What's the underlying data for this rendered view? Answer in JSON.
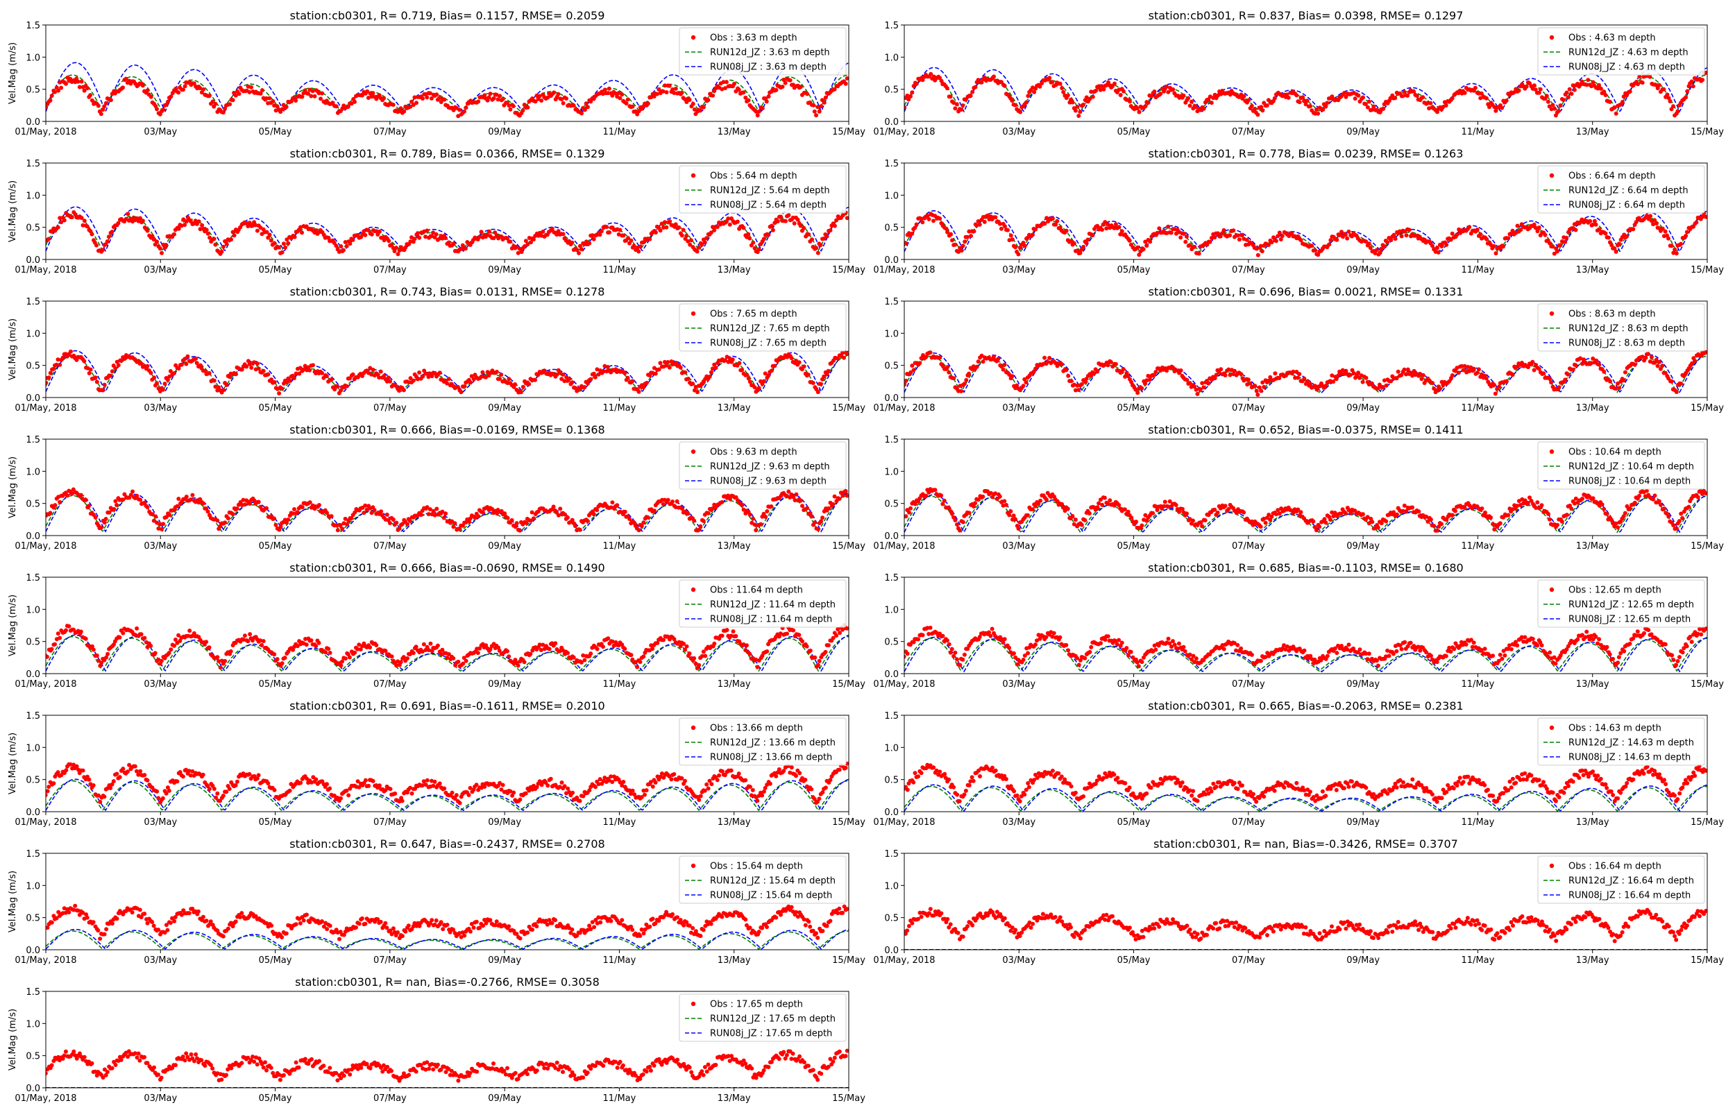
{
  "figure": {
    "background": "#ffffff"
  },
  "colors": {
    "obs": "#ff0000",
    "run12d": "#008000",
    "run08j": "#0000ff"
  },
  "chart_data": [
    {
      "type": "scatter",
      "title": "station:cb0301, R= 0.719, Bias= 0.1157, RMSE= 0.2059",
      "depth": "3.63",
      "xlabel": "",
      "ylabel": "Vel.Mag (m/s)",
      "x_ticks": [
        "01/May, 2018",
        "03/May",
        "05/May",
        "07/May",
        "09/May",
        "11/May",
        "13/May",
        "15/May"
      ],
      "xlim": [
        0,
        14
      ],
      "ylim": [
        0,
        1.5
      ],
      "y_ticks": [
        "0.0",
        "0.5",
        "1.0",
        "1.5"
      ],
      "legend_position": "top-right",
      "series": [
        {
          "name": "Obs : 3.63 m depth",
          "obs_mean": 0.33,
          "amp": 0.2
        },
        {
          "name": "RUN12d_JZ : 3.63 m depth",
          "mean": 0.38,
          "amp": 0.22
        },
        {
          "name": "RUN08j_JZ : 3.63 m depth",
          "mean": 0.45,
          "amp": 0.3
        }
      ]
    },
    {
      "type": "scatter",
      "title": "station:cb0301, R= 0.837, Bias= 0.0398, RMSE= 0.1297",
      "depth": "4.63",
      "xlabel": "",
      "ylabel": "",
      "x_ticks": [
        "01/May, 2018",
        "03/May",
        "05/May",
        "07/May",
        "09/May",
        "11/May",
        "13/May",
        "15/May"
      ],
      "xlim": [
        0,
        14
      ],
      "ylim": [
        0,
        1.5
      ],
      "y_ticks": [
        "0.0",
        "0.5",
        "1.0",
        "1.5"
      ],
      "legend_position": "top-right",
      "series": [
        {
          "name": "Obs : 4.63 m depth",
          "obs_mean": 0.36,
          "amp": 0.22
        },
        {
          "name": "RUN12d_JZ : 4.63 m depth",
          "mean": 0.38,
          "amp": 0.22
        },
        {
          "name": "RUN08j_JZ : 4.63 m depth",
          "mean": 0.42,
          "amp": 0.27
        }
      ]
    },
    {
      "type": "scatter",
      "title": "station:cb0301, R= 0.789, Bias= 0.0366, RMSE= 0.1329",
      "depth": "5.64",
      "xlabel": "",
      "ylabel": "Vel.Mag (m/s)",
      "x_ticks": [
        "01/May, 2018",
        "03/May",
        "05/May",
        "07/May",
        "09/May",
        "11/May",
        "13/May",
        "15/May"
      ],
      "xlim": [
        0,
        14
      ],
      "ylim": [
        0,
        1.5
      ],
      "y_ticks": [
        "0.0",
        "0.5",
        "1.0",
        "1.5"
      ],
      "legend_position": "top-right",
      "series": [
        {
          "name": "Obs : 5.64 m depth",
          "obs_mean": 0.34,
          "amp": 0.22
        },
        {
          "name": "RUN12d_JZ : 5.64 m depth",
          "mean": 0.36,
          "amp": 0.22
        },
        {
          "name": "RUN08j_JZ : 5.64 m depth",
          "mean": 0.4,
          "amp": 0.27
        }
      ]
    },
    {
      "type": "scatter",
      "title": "station:cb0301, R= 0.778, Bias= 0.0239, RMSE= 0.1263",
      "depth": "6.64",
      "xlabel": "",
      "ylabel": "",
      "x_ticks": [
        "01/May, 2018",
        "03/May",
        "05/May",
        "07/May",
        "09/May",
        "11/May",
        "13/May",
        "15/May"
      ],
      "xlim": [
        0,
        14
      ],
      "ylim": [
        0,
        1.5
      ],
      "y_ticks": [
        "0.0",
        "0.5",
        "1.0",
        "1.5"
      ],
      "legend_position": "top-right",
      "series": [
        {
          "name": "Obs : 6.64 m depth",
          "obs_mean": 0.33,
          "amp": 0.22
        },
        {
          "name": "RUN12d_JZ : 6.64 m depth",
          "mean": 0.34,
          "amp": 0.22
        },
        {
          "name": "RUN08j_JZ : 6.64 m depth",
          "mean": 0.37,
          "amp": 0.25
        }
      ]
    },
    {
      "type": "scatter",
      "title": "station:cb0301, R= 0.743, Bias= 0.0131, RMSE= 0.1278",
      "depth": "7.65",
      "xlabel": "",
      "ylabel": "Vel.Mag (m/s)",
      "x_ticks": [
        "01/May, 2018",
        "03/May",
        "05/May",
        "07/May",
        "09/May",
        "11/May",
        "13/May",
        "15/May"
      ],
      "xlim": [
        0,
        14
      ],
      "ylim": [
        0,
        1.5
      ],
      "y_ticks": [
        "0.0",
        "0.5",
        "1.0",
        "1.5"
      ],
      "legend_position": "top-right",
      "series": [
        {
          "name": "Obs : 7.65 m depth",
          "obs_mean": 0.32,
          "amp": 0.22
        },
        {
          "name": "RUN12d_JZ : 7.65 m depth",
          "mean": 0.31,
          "amp": 0.22
        },
        {
          "name": "RUN08j_JZ : 7.65 m depth",
          "mean": 0.34,
          "amp": 0.25
        }
      ]
    },
    {
      "type": "scatter",
      "title": "station:cb0301, R= 0.696, Bias= 0.0021, RMSE= 0.1331",
      "depth": "8.63",
      "xlabel": "",
      "ylabel": "",
      "x_ticks": [
        "01/May, 2018",
        "03/May",
        "05/May",
        "07/May",
        "09/May",
        "11/May",
        "13/May",
        "15/May"
      ],
      "xlim": [
        0,
        14
      ],
      "ylim": [
        0,
        1.5
      ],
      "y_ticks": [
        "0.0",
        "0.5",
        "1.0",
        "1.5"
      ],
      "legend_position": "top-right",
      "series": [
        {
          "name": "Obs : 8.63 m depth",
          "obs_mean": 0.32,
          "amp": 0.22
        },
        {
          "name": "RUN12d_JZ : 8.63 m depth",
          "mean": 0.3,
          "amp": 0.22
        },
        {
          "name": "RUN08j_JZ : 8.63 m depth",
          "mean": 0.32,
          "amp": 0.24
        }
      ]
    },
    {
      "type": "scatter",
      "title": "station:cb0301, R= 0.666, Bias=-0.0169, RMSE= 0.1368",
      "depth": "9.63",
      "xlabel": "",
      "ylabel": "Vel.Mag (m/s)",
      "x_ticks": [
        "01/May, 2018",
        "03/May",
        "05/May",
        "07/May",
        "09/May",
        "11/May",
        "13/May",
        "15/May"
      ],
      "xlim": [
        0,
        14
      ],
      "ylim": [
        0,
        1.5
      ],
      "y_ticks": [
        "0.0",
        "0.5",
        "1.0",
        "1.5"
      ],
      "legend_position": "top-right",
      "series": [
        {
          "name": "Obs : 9.63 m depth",
          "obs_mean": 0.33,
          "amp": 0.22
        },
        {
          "name": "RUN12d_JZ : 9.63 m depth",
          "mean": 0.28,
          "amp": 0.22
        },
        {
          "name": "RUN08j_JZ : 9.63 m depth",
          "mean": 0.3,
          "amp": 0.24
        }
      ]
    },
    {
      "type": "scatter",
      "title": "station:cb0301, R= 0.652, Bias=-0.0375, RMSE= 0.1411",
      "depth": "10.64",
      "xlabel": "",
      "ylabel": "",
      "x_ticks": [
        "01/May, 2018",
        "03/May",
        "05/May",
        "07/May",
        "09/May",
        "11/May",
        "13/May",
        "15/May"
      ],
      "xlim": [
        0,
        14
      ],
      "ylim": [
        0,
        1.5
      ],
      "y_ticks": [
        "0.0",
        "0.5",
        "1.0",
        "1.5"
      ],
      "legend_position": "top-right",
      "series": [
        {
          "name": "Obs : 10.64 m depth",
          "obs_mean": 0.34,
          "amp": 0.22
        },
        {
          "name": "RUN12d_JZ : 10.64 m depth",
          "mean": 0.27,
          "amp": 0.22
        },
        {
          "name": "RUN08j_JZ : 10.64 m depth",
          "mean": 0.28,
          "amp": 0.23
        }
      ]
    },
    {
      "type": "scatter",
      "title": "station:cb0301, R= 0.666, Bias=-0.0690, RMSE= 0.1490",
      "depth": "11.64",
      "xlabel": "",
      "ylabel": "Vel.Mag (m/s)",
      "x_ticks": [
        "01/May, 2018",
        "03/May",
        "05/May",
        "07/May",
        "09/May",
        "11/May",
        "13/May",
        "15/May"
      ],
      "xlim": [
        0,
        14
      ],
      "ylim": [
        0,
        1.5
      ],
      "y_ticks": [
        "0.0",
        "0.5",
        "1.0",
        "1.5"
      ],
      "legend_position": "top-right",
      "series": [
        {
          "name": "Obs : 11.64 m depth",
          "obs_mean": 0.36,
          "amp": 0.22
        },
        {
          "name": "RUN12d_JZ : 11.64 m depth",
          "mean": 0.25,
          "amp": 0.21
        },
        {
          "name": "RUN08j_JZ : 11.64 m depth",
          "mean": 0.26,
          "amp": 0.22
        }
      ]
    },
    {
      "type": "scatter",
      "title": "station:cb0301, R= 0.685, Bias=-0.1103, RMSE= 0.1680",
      "depth": "12.65",
      "xlabel": "",
      "ylabel": "",
      "x_ticks": [
        "01/May, 2018",
        "03/May",
        "05/May",
        "07/May",
        "09/May",
        "11/May",
        "13/May",
        "15/May"
      ],
      "xlim": [
        0,
        14
      ],
      "ylim": [
        0,
        1.5
      ],
      "y_ticks": [
        "0.0",
        "0.5",
        "1.0",
        "1.5"
      ],
      "legend_position": "top-right",
      "series": [
        {
          "name": "Obs : 12.65 m depth",
          "obs_mean": 0.36,
          "amp": 0.2
        },
        {
          "name": "RUN12d_JZ : 12.65 m depth",
          "mean": 0.24,
          "amp": 0.2
        },
        {
          "name": "RUN08j_JZ : 12.65 m depth",
          "mean": 0.24,
          "amp": 0.21
        }
      ]
    },
    {
      "type": "scatter",
      "title": "station:cb0301, R= 0.691, Bias=-0.1611, RMSE= 0.2010",
      "depth": "13.66",
      "xlabel": "",
      "ylabel": "Vel.Mag (m/s)",
      "x_ticks": [
        "01/May, 2018",
        "03/May",
        "05/May",
        "07/May",
        "09/May",
        "11/May",
        "13/May",
        "15/May"
      ],
      "xlim": [
        0,
        14
      ],
      "ylim": [
        0,
        1.5
      ],
      "y_ticks": [
        "0.0",
        "0.5",
        "1.0",
        "1.5"
      ],
      "legend_position": "top-right",
      "series": [
        {
          "name": "Obs : 13.66 m depth",
          "obs_mean": 0.38,
          "amp": 0.2
        },
        {
          "name": "RUN12d_JZ : 13.66 m depth",
          "mean": 0.2,
          "amp": 0.18
        },
        {
          "name": "RUN08j_JZ : 13.66 m depth",
          "mean": 0.21,
          "amp": 0.19
        }
      ]
    },
    {
      "type": "scatter",
      "title": "station:cb0301, R= 0.665, Bias=-0.2063, RMSE= 0.2381",
      "depth": "14.63",
      "xlabel": "",
      "ylabel": "",
      "x_ticks": [
        "01/May, 2018",
        "03/May",
        "05/May",
        "07/May",
        "09/May",
        "11/May",
        "13/May",
        "15/May"
      ],
      "xlim": [
        0,
        14
      ],
      "ylim": [
        0,
        1.5
      ],
      "y_ticks": [
        "0.0",
        "0.5",
        "1.0",
        "1.5"
      ],
      "legend_position": "top-right",
      "series": [
        {
          "name": "Obs : 14.63 m depth",
          "obs_mean": 0.38,
          "amp": 0.19
        },
        {
          "name": "RUN12d_JZ : 14.63 m depth",
          "mean": 0.16,
          "amp": 0.15
        },
        {
          "name": "RUN08j_JZ : 14.63 m depth",
          "mean": 0.17,
          "amp": 0.16
        }
      ]
    },
    {
      "type": "scatter",
      "title": "station:cb0301, R= 0.647, Bias=-0.2437, RMSE= 0.2708",
      "depth": "15.64",
      "xlabel": "",
      "ylabel": "Vel.Mag (m/s)",
      "x_ticks": [
        "01/May, 2018",
        "03/May",
        "05/May",
        "07/May",
        "09/May",
        "11/May",
        "13/May",
        "15/May"
      ],
      "xlim": [
        0,
        14
      ],
      "ylim": [
        0,
        1.5
      ],
      "y_ticks": [
        "0.0",
        "0.5",
        "1.0",
        "1.5"
      ],
      "legend_position": "top-right",
      "series": [
        {
          "name": "Obs : 15.64 m depth",
          "obs_mean": 0.38,
          "amp": 0.17
        },
        {
          "name": "RUN12d_JZ : 15.64 m depth",
          "mean": 0.12,
          "amp": 0.11
        },
        {
          "name": "RUN08j_JZ : 15.64 m depth",
          "mean": 0.13,
          "amp": 0.12
        }
      ]
    },
    {
      "type": "scatter",
      "title": "station:cb0301, R=   nan, Bias=-0.3426, RMSE= 0.3707",
      "depth": "16.64",
      "xlabel": "",
      "ylabel": "",
      "x_ticks": [
        "01/May, 2018",
        "03/May",
        "05/May",
        "07/May",
        "09/May",
        "11/May",
        "13/May",
        "15/May"
      ],
      "xlim": [
        0,
        14
      ],
      "ylim": [
        0,
        1.5
      ],
      "y_ticks": [
        "0.0",
        "0.5",
        "1.0",
        "1.5"
      ],
      "legend_position": "top-right",
      "series": [
        {
          "name": "Obs : 16.64 m depth",
          "obs_mean": 0.34,
          "amp": 0.16
        },
        {
          "name": "RUN12d_JZ : 16.64 m depth",
          "mean": 0.0,
          "amp": 0.0
        },
        {
          "name": "RUN08j_JZ : 16.64 m depth",
          "mean": 0.0,
          "amp": 0.0
        }
      ]
    },
    {
      "type": "scatter",
      "title": "station:cb0301, R=   nan, Bias=-0.2766, RMSE= 0.3058",
      "depth": "17.65",
      "xlabel": "",
      "ylabel": "Vel.Mag (m/s)",
      "x_ticks": [
        "01/May, 2018",
        "03/May",
        "05/May",
        "07/May",
        "09/May",
        "11/May",
        "13/May",
        "15/May"
      ],
      "xlim": [
        0,
        14
      ],
      "ylim": [
        0,
        1.5
      ],
      "y_ticks": [
        "0.0",
        "0.5",
        "1.0",
        "1.5"
      ],
      "legend_position": "top-right",
      "series": [
        {
          "name": "Obs : 17.65 m depth",
          "obs_mean": 0.3,
          "amp": 0.15
        },
        {
          "name": "RUN12d_JZ : 17.65 m depth",
          "mean": 0.0,
          "amp": 0.0
        },
        {
          "name": "RUN08j_JZ : 17.65 m depth",
          "mean": 0.0,
          "amp": 0.0
        }
      ]
    }
  ]
}
